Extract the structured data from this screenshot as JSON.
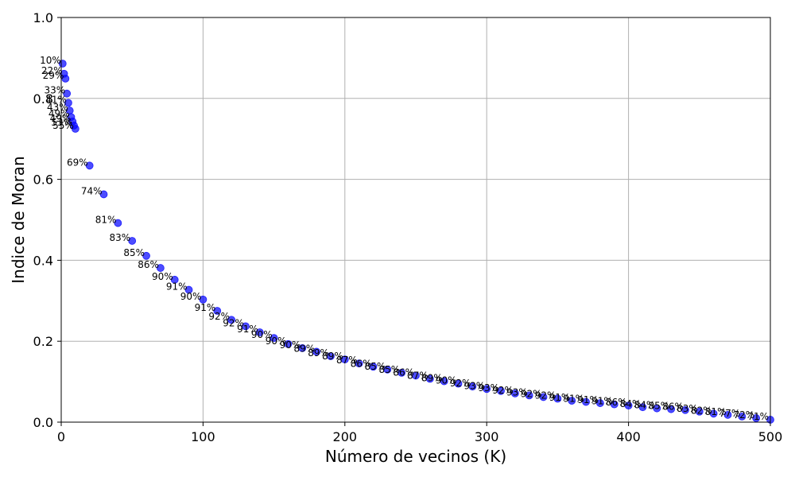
{
  "chart_data": {
    "type": "scatter",
    "xlabel": "Número de vecinos (K)",
    "ylabel": "Indice de Moran",
    "xlim": [
      0,
      500
    ],
    "ylim": [
      0,
      1.0
    ],
    "x_ticks": [
      {
        "value": 0,
        "label": "0"
      },
      {
        "value": 100,
        "label": "100"
      },
      {
        "value": 200,
        "label": "200"
      },
      {
        "value": 300,
        "label": "300"
      },
      {
        "value": 400,
        "label": "400"
      },
      {
        "value": 500,
        "label": "500"
      }
    ],
    "y_ticks": [
      {
        "value": 0,
        "label": "0.0"
      },
      {
        "value": 0.2,
        "label": "0.2"
      },
      {
        "value": 0.4,
        "label": "0.4"
      },
      {
        "value": 0.6,
        "label": "0.6"
      },
      {
        "value": 0.8,
        "label": "0.8"
      },
      {
        "value": 1.0,
        "label": "1.0"
      }
    ],
    "grid": true,
    "marker_color": "#0000ff",
    "points": [
      {
        "x": 1,
        "y": 0.886,
        "label": "10%"
      },
      {
        "x": 2,
        "y": 0.861,
        "label": "22%"
      },
      {
        "x": 3,
        "y": 0.849,
        "label": "29%"
      },
      {
        "x": 4,
        "y": 0.812,
        "label": "33%"
      },
      {
        "x": 5,
        "y": 0.789,
        "label": "41%"
      },
      {
        "x": 6,
        "y": 0.77,
        "label": "43%"
      },
      {
        "x": 7,
        "y": 0.754,
        "label": "49%"
      },
      {
        "x": 8,
        "y": 0.743,
        "label": "49%"
      },
      {
        "x": 9,
        "y": 0.733,
        "label": "53%"
      },
      {
        "x": 10,
        "y": 0.725,
        "label": "55%"
      },
      {
        "x": 20,
        "y": 0.634,
        "label": "69%"
      },
      {
        "x": 30,
        "y": 0.563,
        "label": "74%"
      },
      {
        "x": 40,
        "y": 0.492,
        "label": "81%"
      },
      {
        "x": 50,
        "y": 0.448,
        "label": "83%"
      },
      {
        "x": 60,
        "y": 0.411,
        "label": "85%"
      },
      {
        "x": 70,
        "y": 0.381,
        "label": "86%"
      },
      {
        "x": 80,
        "y": 0.352,
        "label": "90%"
      },
      {
        "x": 90,
        "y": 0.327,
        "label": "91%"
      },
      {
        "x": 100,
        "y": 0.303,
        "label": "90%"
      },
      {
        "x": 110,
        "y": 0.275,
        "label": "91%"
      },
      {
        "x": 120,
        "y": 0.253,
        "label": "92%"
      },
      {
        "x": 130,
        "y": 0.237,
        "label": "92%"
      },
      {
        "x": 140,
        "y": 0.222,
        "label": "91%"
      },
      {
        "x": 150,
        "y": 0.208,
        "label": "90%"
      },
      {
        "x": 160,
        "y": 0.193,
        "label": "90%"
      },
      {
        "x": 170,
        "y": 0.183,
        "label": "90%"
      },
      {
        "x": 180,
        "y": 0.174,
        "label": "89%"
      },
      {
        "x": 190,
        "y": 0.163,
        "label": "89%"
      },
      {
        "x": 200,
        "y": 0.155,
        "label": "89%"
      },
      {
        "x": 210,
        "y": 0.145,
        "label": "87%"
      },
      {
        "x": 220,
        "y": 0.137,
        "label": "86%"
      },
      {
        "x": 230,
        "y": 0.13,
        "label": "85%"
      },
      {
        "x": 240,
        "y": 0.122,
        "label": "85%"
      },
      {
        "x": 250,
        "y": 0.115,
        "label": "86%"
      },
      {
        "x": 260,
        "y": 0.107,
        "label": "87%"
      },
      {
        "x": 270,
        "y": 0.101,
        "label": "89%"
      },
      {
        "x": 280,
        "y": 0.095,
        "label": "90%"
      },
      {
        "x": 290,
        "y": 0.088,
        "label": "92%"
      },
      {
        "x": 300,
        "y": 0.082,
        "label": "93%"
      },
      {
        "x": 310,
        "y": 0.077,
        "label": "93%"
      },
      {
        "x": 320,
        "y": 0.071,
        "label": "92%"
      },
      {
        "x": 330,
        "y": 0.066,
        "label": "93%"
      },
      {
        "x": 340,
        "y": 0.062,
        "label": "92%"
      },
      {
        "x": 350,
        "y": 0.058,
        "label": "92%"
      },
      {
        "x": 360,
        "y": 0.053,
        "label": "91%"
      },
      {
        "x": 370,
        "y": 0.05,
        "label": "91%"
      },
      {
        "x": 380,
        "y": 0.047,
        "label": "91%"
      },
      {
        "x": 390,
        "y": 0.044,
        "label": "91%"
      },
      {
        "x": 400,
        "y": 0.041,
        "label": "86%"
      },
      {
        "x": 410,
        "y": 0.037,
        "label": "84%"
      },
      {
        "x": 420,
        "y": 0.034,
        "label": "84%"
      },
      {
        "x": 430,
        "y": 0.032,
        "label": "85%"
      },
      {
        "x": 440,
        "y": 0.03,
        "label": "86%"
      },
      {
        "x": 450,
        "y": 0.026,
        "label": "83%"
      },
      {
        "x": 460,
        "y": 0.021,
        "label": "82%"
      },
      {
        "x": 470,
        "y": 0.018,
        "label": "81%"
      },
      {
        "x": 480,
        "y": 0.014,
        "label": "77%"
      },
      {
        "x": 490,
        "y": 0.01,
        "label": "72%"
      },
      {
        "x": 500,
        "y": 0.006,
        "label": "71%"
      }
    ]
  }
}
